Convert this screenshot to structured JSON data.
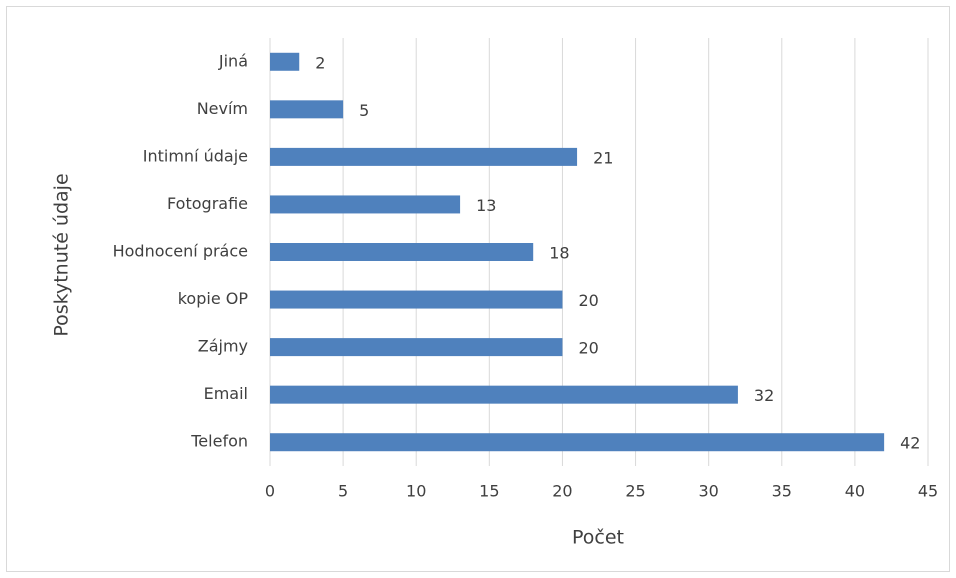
{
  "chart_data": {
    "type": "barh",
    "categories": [
      "Jiná",
      "Nevím",
      "Intimní údaje",
      "Fotografie",
      "Hodnocení práce",
      "kopie OP",
      "Zájmy",
      "Email",
      "Telefon"
    ],
    "values": [
      2,
      5,
      21,
      13,
      18,
      20,
      20,
      32,
      42
    ],
    "color": "#4f81bd",
    "xlabel": "Počet",
    "ylabel": "Poskytnuté údaje",
    "xlim": [
      0,
      45
    ],
    "xticks": [
      0,
      5,
      10,
      15,
      20,
      25,
      30,
      35,
      40,
      45
    ],
    "grid": true
  }
}
